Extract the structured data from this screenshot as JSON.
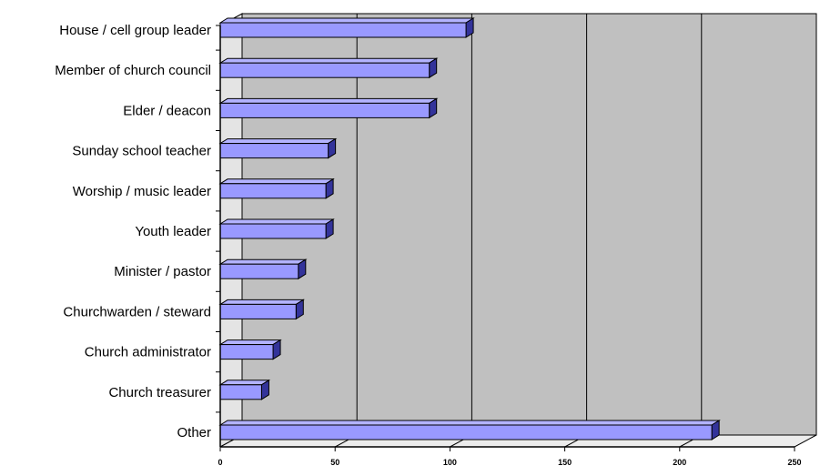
{
  "chart_data": {
    "type": "bar",
    "orientation": "horizontal",
    "style": "3d",
    "categories": [
      "House / cell group leader",
      "Member of church council",
      "Elder / deacon",
      "Sunday school teacher",
      "Worship / music leader",
      "Youth leader",
      "Minister / pastor",
      "Churchwarden / steward",
      "Church administrator",
      "Church treasurer",
      "Other"
    ],
    "values": [
      107,
      91,
      91,
      47,
      46,
      46,
      34,
      33,
      23,
      18,
      214
    ],
    "xlim": [
      0,
      250
    ],
    "xticks": [
      0,
      50,
      100,
      150,
      200,
      250
    ],
    "xtick_labels": [
      "0",
      "50",
      "100",
      "150",
      "200",
      "250"
    ],
    "grid": true,
    "legend": "none",
    "colors": {
      "bar_front": "#9999ff",
      "bar_top": "#b3b3ff",
      "bar_side": "#33339a",
      "plot_back": "#c0c0c0",
      "floor": "#ececec"
    }
  }
}
